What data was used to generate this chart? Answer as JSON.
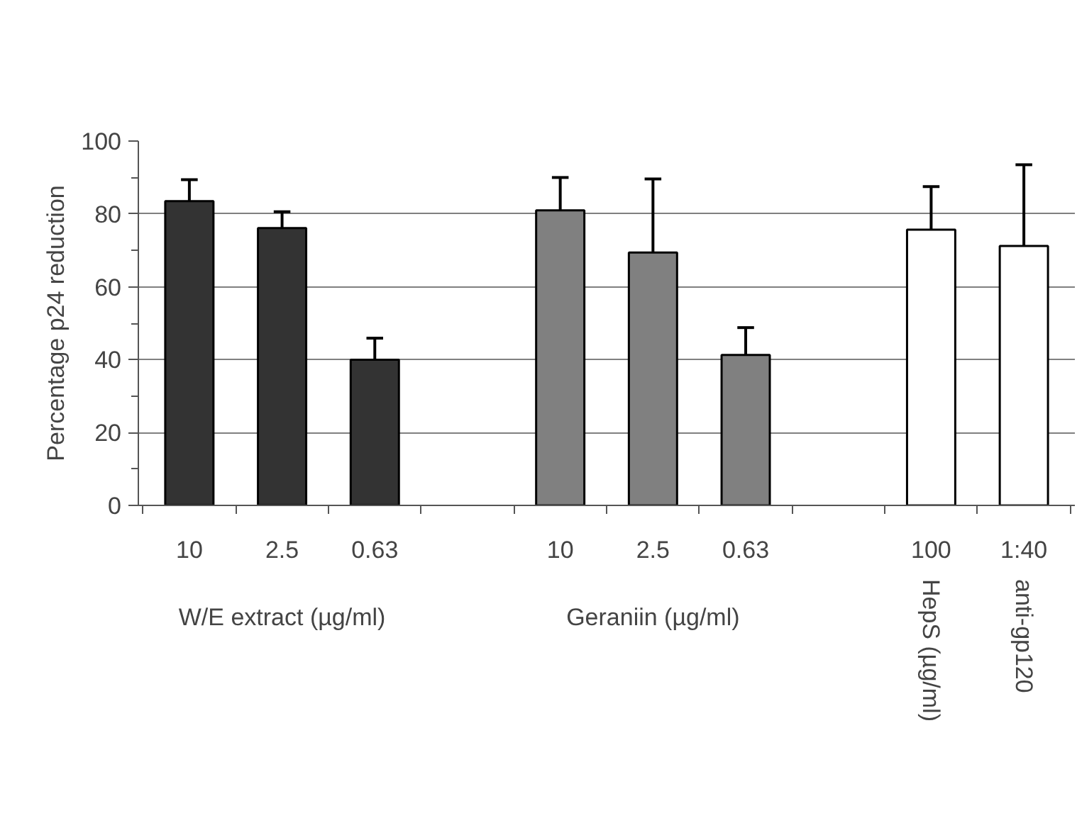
{
  "chart_data": {
    "type": "bar",
    "ylabel": "Percentage p24 reduction",
    "categories": [
      "10",
      "2.5",
      "0.63",
      null,
      "10",
      "2.5",
      "0.63",
      null,
      "100",
      "1:40"
    ],
    "values": [
      83.5,
      76.1,
      40,
      null,
      81,
      69.4,
      41.3,
      null,
      75.7,
      71.2
    ],
    "colors": [
      "#333333",
      "#333333",
      "#333333",
      "#ffffff",
      "#808080",
      "#808080",
      "#808080",
      "#ffffff",
      "#ffffff",
      "#ffffff"
    ],
    "errors": [
      [
        83.5,
        89.4
      ],
      [
        76.1,
        80.6
      ],
      [
        40,
        45.9
      ],
      null,
      [
        81,
        90
      ],
      [
        69.4,
        89.6
      ],
      [
        41.3,
        48.8
      ],
      null,
      [
        75.7,
        87.5
      ],
      [
        71.2,
        93.5
      ]
    ],
    "ylim": [
      0,
      100
    ],
    "yticks": [
      0,
      20,
      40,
      60,
      80,
      100
    ],
    "grid": "y",
    "annotations": [
      "W/E extract (µg/ml)",
      "Geraniin (µg/ml)",
      "HepS (µg/ml)",
      "anti-gp120"
    ]
  }
}
